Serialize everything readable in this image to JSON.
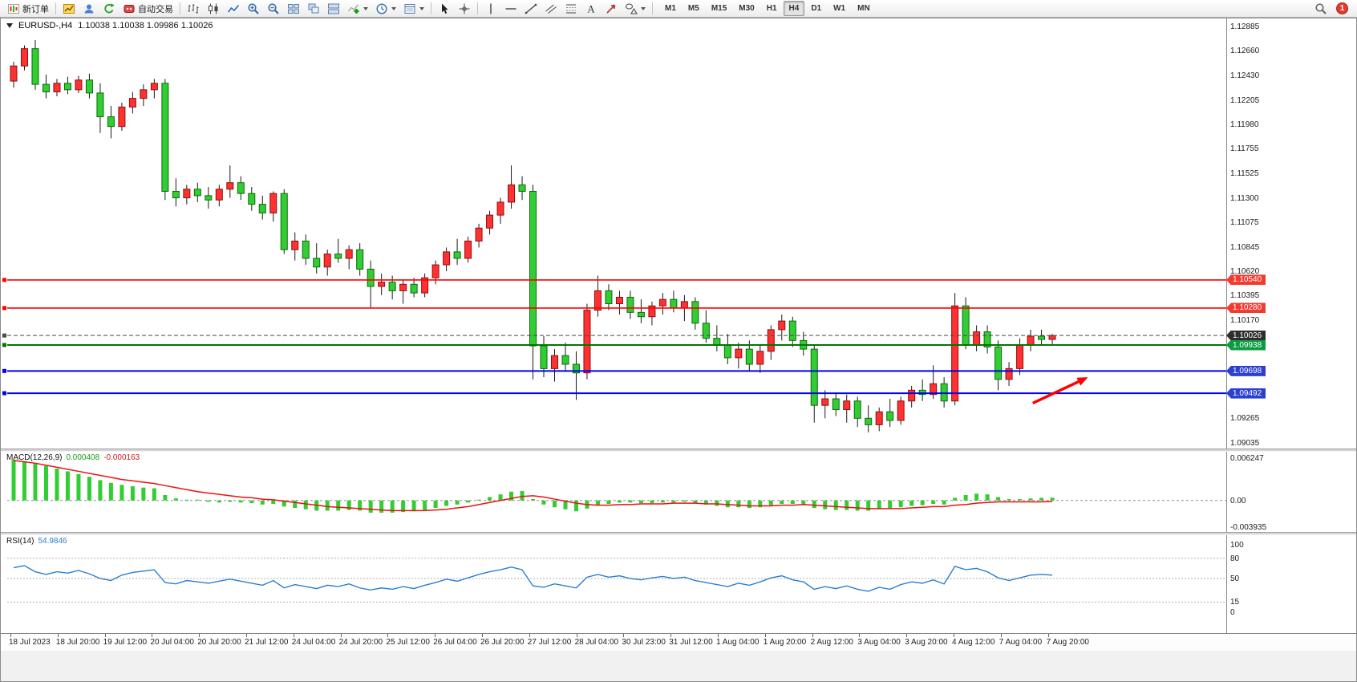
{
  "toolbar": {
    "new_order_label": "新订单",
    "autotrade_label": "自动交易",
    "badge_count": "1",
    "timeframes": [
      {
        "label": "M1",
        "active": false
      },
      {
        "label": "M5",
        "active": false
      },
      {
        "label": "M15",
        "active": false
      },
      {
        "label": "M30",
        "active": false
      },
      {
        "label": "H1",
        "active": false
      },
      {
        "label": "H4",
        "active": true
      },
      {
        "label": "D1",
        "active": false
      },
      {
        "label": "W1",
        "active": false
      },
      {
        "label": "MN",
        "active": false
      }
    ],
    "icons": [
      "new-order",
      "new-chart",
      "profiles",
      "refresh",
      "autotrading",
      "bars-chart-type",
      "candles-chart-type",
      "line-chart-type",
      "zoom-in",
      "zoom-out",
      "tile-windows",
      "cascade-windows",
      "arrange-windows",
      "indicators",
      "periods",
      "templates",
      "cursor",
      "crosshair",
      "vertical-line",
      "horizontal-line",
      "trendline",
      "channel",
      "fibonacci",
      "text",
      "arrow-label",
      "shapes",
      "search",
      "notifications"
    ]
  },
  "chart_title": {
    "symbol": "EURUSD-,H4",
    "ohlc": "1.10038 1.10038 1.09986 1.10026"
  },
  "chart_data": {
    "type": "candlestick",
    "view": {
      "price_top": 1.1293,
      "price_bottom": 1.0901
    },
    "price_axis": {
      "labels": [
        "1.12885",
        "1.12660",
        "1.12430",
        "1.12205",
        "1.11980",
        "1.11755",
        "1.11525",
        "1.11300",
        "1.11075",
        "1.10845",
        "1.10620",
        "1.10395",
        "1.10170",
        "1.09940",
        "1.09715",
        "1.09490",
        "1.09265",
        "1.09035"
      ]
    },
    "time_axis": {
      "labels": [
        "18 Jul 2023",
        "18 Jul 20:00",
        "19 Jul 12:00",
        "20 Jul 04:00",
        "20 Jul 20:00",
        "21 Jul 12:00",
        "24 Jul 04:00",
        "24 Jul 20:00",
        "25 Jul 12:00",
        "26 Jul 04:00",
        "26 Jul 20:00",
        "27 Jul 12:00",
        "28 Jul 04:00",
        "30 Jul 23:00",
        "31 Jul 12:00",
        "1 Aug 04:00",
        "1 Aug 20:00",
        "2 Aug 12:00",
        "3 Aug 04:00",
        "3 Aug 20:00",
        "4 Aug 12:00",
        "7 Aug 04:00",
        "7 Aug 20:00"
      ]
    },
    "levels": [
      {
        "label": "1.10540",
        "price": 1.1054,
        "line_color": "#ff0000",
        "tag_bg": "#f23b2e",
        "style": "solid",
        "width": 1.6
      },
      {
        "label": "1.10280",
        "price": 1.1028,
        "line_color": "#ff0000",
        "tag_bg": "#f23b2e",
        "style": "solid",
        "width": 1.6
      },
      {
        "label": "1.10026",
        "price": 1.10026,
        "line_color": "#4a4a4a",
        "tag_bg": "#2e2e2e",
        "style": "dash",
        "width": 1
      },
      {
        "label": "1.09938",
        "price": 1.09938,
        "line_color": "#007500",
        "tag_bg": "#0a9b40",
        "style": "solid",
        "width": 2
      },
      {
        "label": "1.09698",
        "price": 1.09698,
        "line_color": "#0000ee",
        "tag_bg": "#2b3fd0",
        "style": "solid",
        "width": 2
      },
      {
        "label": "1.09492",
        "price": 1.09492,
        "line_color": "#0000ee",
        "tag_bg": "#2b3fd0",
        "style": "solid",
        "width": 2
      }
    ],
    "arrow_annotation": {
      "color": "#ff0000",
      "from": {
        "index": 94.2,
        "price": 1.094
      },
      "to": {
        "index": 99.3,
        "price": 1.0964
      }
    },
    "candles": {
      "bull_color": "#ff3131",
      "bull_border": "#8e0f0f",
      "bear_color": "#32cd32",
      "bear_border": "#0b6b0b",
      "wick_color": "#1a1a1a",
      "ohlc": [
        [
          1.1238,
          1.1256,
          1.1232,
          1.1252
        ],
        [
          1.1252,
          1.1271,
          1.1248,
          1.1268
        ],
        [
          1.1268,
          1.1276,
          1.123,
          1.1235
        ],
        [
          1.1235,
          1.1244,
          1.1222,
          1.1228
        ],
        [
          1.1228,
          1.124,
          1.1224,
          1.1236
        ],
        [
          1.1236,
          1.1242,
          1.1226,
          1.123
        ],
        [
          1.123,
          1.1243,
          1.1227,
          1.1239
        ],
        [
          1.1239,
          1.1245,
          1.1222,
          1.1227
        ],
        [
          1.1227,
          1.1236,
          1.119,
          1.1205
        ],
        [
          1.1205,
          1.1215,
          1.1185,
          1.1196
        ],
        [
          1.1196,
          1.1218,
          1.1192,
          1.1214
        ],
        [
          1.1214,
          1.1228,
          1.1208,
          1.1222
        ],
        [
          1.1222,
          1.1235,
          1.1215,
          1.123
        ],
        [
          1.123,
          1.124,
          1.1222,
          1.1236
        ],
        [
          1.1236,
          1.124,
          1.1128,
          1.1136
        ],
        [
          1.1136,
          1.1148,
          1.1122,
          1.113
        ],
        [
          1.113,
          1.1142,
          1.1124,
          1.1138
        ],
        [
          1.1138,
          1.1144,
          1.1126,
          1.1132
        ],
        [
          1.1132,
          1.114,
          1.112,
          1.1128
        ],
        [
          1.1128,
          1.1142,
          1.1122,
          1.1138
        ],
        [
          1.1138,
          1.116,
          1.113,
          1.1144
        ],
        [
          1.1144,
          1.115,
          1.1128,
          1.1134
        ],
        [
          1.1134,
          1.114,
          1.1118,
          1.1124
        ],
        [
          1.1124,
          1.1132,
          1.111,
          1.1116
        ],
        [
          1.1116,
          1.1136,
          1.1108,
          1.1134
        ],
        [
          1.1134,
          1.1138,
          1.1078,
          1.1082
        ],
        [
          1.1082,
          1.1098,
          1.1072,
          1.109
        ],
        [
          1.109,
          1.1096,
          1.1068,
          1.1074
        ],
        [
          1.1074,
          1.1088,
          1.106,
          1.1066
        ],
        [
          1.1066,
          1.1082,
          1.1058,
          1.1078
        ],
        [
          1.1078,
          1.1092,
          1.107,
          1.1074
        ],
        [
          1.1074,
          1.1086,
          1.1064,
          1.1082
        ],
        [
          1.1082,
          1.1088,
          1.1058,
          1.1064
        ],
        [
          1.1064,
          1.1072,
          1.1028,
          1.1048
        ],
        [
          1.1048,
          1.106,
          1.104,
          1.1052
        ],
        [
          1.1052,
          1.1058,
          1.1036,
          1.1044
        ],
        [
          1.1044,
          1.1054,
          1.1032,
          1.105
        ],
        [
          1.105,
          1.1056,
          1.1038,
          1.1042
        ],
        [
          1.1042,
          1.106,
          1.1038,
          1.1056
        ],
        [
          1.1056,
          1.1072,
          1.105,
          1.1068
        ],
        [
          1.1068,
          1.1084,
          1.1062,
          1.108
        ],
        [
          1.108,
          1.1092,
          1.1068,
          1.1074
        ],
        [
          1.1074,
          1.1094,
          1.107,
          1.109
        ],
        [
          1.109,
          1.1106,
          1.1084,
          1.1102
        ],
        [
          1.1102,
          1.1118,
          1.1096,
          1.1114
        ],
        [
          1.1114,
          1.113,
          1.1106,
          1.1126
        ],
        [
          1.1126,
          1.116,
          1.112,
          1.1142
        ],
        [
          1.1142,
          1.115,
          1.1128,
          1.1136
        ],
        [
          1.1136,
          1.1142,
          1.0962,
          1.0993
        ],
        [
          1.0993,
          1.1002,
          1.0964,
          1.0972
        ],
        [
          1.0972,
          1.099,
          1.096,
          1.0984
        ],
        [
          1.0984,
          1.0996,
          1.097,
          1.0976
        ],
        [
          1.0976,
          1.0988,
          1.0943,
          1.0968
        ],
        [
          1.0968,
          1.1032,
          1.0962,
          1.1026
        ],
        [
          1.1026,
          1.1058,
          1.102,
          1.1044
        ],
        [
          1.1044,
          1.105,
          1.1026,
          1.1032
        ],
        [
          1.1032,
          1.1044,
          1.1022,
          1.1038
        ],
        [
          1.1038,
          1.1044,
          1.1018,
          1.1024
        ],
        [
          1.1024,
          1.1036,
          1.1014,
          1.102
        ],
        [
          1.102,
          1.1034,
          1.1012,
          1.103
        ],
        [
          1.103,
          1.1042,
          1.1022,
          1.1036
        ],
        [
          1.1036,
          1.1044,
          1.1024,
          1.1028
        ],
        [
          1.1028,
          1.104,
          1.1016,
          1.1034
        ],
        [
          1.1034,
          1.1038,
          1.1008,
          1.1014
        ],
        [
          1.1014,
          1.1026,
          1.0996,
          1.1
        ],
        [
          1.1,
          1.1012,
          1.0988,
          1.0994
        ],
        [
          1.0994,
          1.1004,
          1.0976,
          1.0982
        ],
        [
          1.0982,
          1.0996,
          1.0972,
          1.099
        ],
        [
          1.099,
          1.0998,
          1.097,
          1.0976
        ],
        [
          1.0976,
          1.0994,
          1.0968,
          1.0988
        ],
        [
          1.0988,
          1.1012,
          1.098,
          1.1008
        ],
        [
          1.1008,
          1.1022,
          1.0998,
          1.1016
        ],
        [
          1.1016,
          1.102,
          1.0992,
          1.0998
        ],
        [
          1.0998,
          1.1006,
          1.0984,
          1.099
        ],
        [
          1.099,
          1.0994,
          1.0922,
          1.0938
        ],
        [
          1.0938,
          1.0952,
          1.0926,
          1.0944
        ],
        [
          1.0944,
          1.095,
          1.0928,
          1.0934
        ],
        [
          1.0934,
          1.0948,
          1.0922,
          1.0942
        ],
        [
          1.0942,
          1.0946,
          1.0918,
          1.0926
        ],
        [
          1.0926,
          1.0938,
          1.0913,
          1.092
        ],
        [
          1.092,
          1.0936,
          1.0914,
          1.0932
        ],
        [
          1.0932,
          1.0944,
          1.0918,
          1.0924
        ],
        [
          1.0924,
          1.0946,
          1.092,
          1.0942
        ],
        [
          1.0942,
          1.0956,
          1.0936,
          1.0952
        ],
        [
          1.0952,
          1.0962,
          1.0942,
          1.0948
        ],
        [
          1.0948,
          1.0975,
          1.0944,
          1.0958
        ],
        [
          1.0958,
          1.0964,
          1.0936,
          1.0942
        ],
        [
          1.0942,
          1.1042,
          1.0938,
          1.103
        ],
        [
          1.103,
          1.1038,
          1.099,
          1.0994
        ],
        [
          1.0994,
          1.1012,
          1.0988,
          1.1006
        ],
        [
          1.1006,
          1.1012,
          1.0986,
          1.0992
        ],
        [
          1.0992,
          1.0998,
          1.0952,
          1.0962
        ],
        [
          1.0962,
          1.0978,
          1.0956,
          1.0972
        ],
        [
          1.0972,
          1.1,
          1.0966,
          1.0994
        ],
        [
          1.0994,
          1.1008,
          1.0988,
          1.1002
        ],
        [
          1.1002,
          1.1008,
          1.0994,
          1.0999
        ],
        [
          1.0999,
          1.1004,
          1.0994,
          1.10026
        ]
      ]
    },
    "macd": {
      "label": "MACD(12,26,9)",
      "value_main": "0.000408",
      "value_signal": "-0.000163",
      "scale_labels": [
        "0.006247",
        "0.00",
        "-0.003935"
      ],
      "scale_max": 0.006247,
      "scale_min": -0.003935,
      "histogram_color": "#32cd32",
      "signal_color": "#ee1111",
      "histogram": [
        0.006,
        0.0058,
        0.0055,
        0.0051,
        0.0047,
        0.0043,
        0.0039,
        0.0035,
        0.003,
        0.0026,
        0.0023,
        0.0021,
        0.0019,
        0.0018,
        0.0008,
        0.0003,
        0.0001,
        0.0,
        -0.0002,
        -0.0003,
        -0.0002,
        -0.0003,
        -0.0004,
        -0.0006,
        -0.0005,
        -0.0009,
        -0.0011,
        -0.0013,
        -0.0015,
        -0.0015,
        -0.0015,
        -0.0014,
        -0.0015,
        -0.0018,
        -0.0018,
        -0.0018,
        -0.0017,
        -0.0016,
        -0.0014,
        -0.0011,
        -0.0008,
        -0.0006,
        -0.0003,
        0.0001,
        0.0005,
        0.0009,
        0.0013,
        0.0014,
        0.0002,
        -0.0006,
        -0.001,
        -0.0013,
        -0.0016,
        -0.0012,
        -0.0007,
        -0.0005,
        -0.0003,
        -0.0003,
        -0.0004,
        -0.0004,
        -0.0003,
        -0.0003,
        -0.0002,
        -0.0004,
        -0.0006,
        -0.0008,
        -0.001,
        -0.001,
        -0.0011,
        -0.001,
        -0.0007,
        -0.0005,
        -0.0005,
        -0.0006,
        -0.0011,
        -0.0013,
        -0.0014,
        -0.0014,
        -0.0015,
        -0.0015,
        -0.0013,
        -0.0012,
        -0.001,
        -0.0008,
        -0.0007,
        -0.0005,
        -0.0006,
        0.0004,
        0.0008,
        0.001,
        0.0009,
        0.0005,
        0.0002,
        0.0002,
        0.0003,
        0.0004,
        0.000408
      ],
      "signal": [
        0.0059,
        0.0057,
        0.0055,
        0.0052,
        0.0049,
        0.0046,
        0.0043,
        0.004,
        0.0037,
        0.0034,
        0.0031,
        0.0029,
        0.0027,
        0.0025,
        0.0022,
        0.0019,
        0.0016,
        0.0013,
        0.0011,
        0.0009,
        0.0007,
        0.0005,
        0.0004,
        0.0002,
        0.0001,
        -0.0001,
        -0.0003,
        -0.0005,
        -0.0007,
        -0.0009,
        -0.001,
        -0.0011,
        -0.0012,
        -0.0013,
        -0.0014,
        -0.0015,
        -0.0015,
        -0.0015,
        -0.0015,
        -0.0014,
        -0.0013,
        -0.0011,
        -0.0009,
        -0.0006,
        -0.0003,
        0.0,
        0.0003,
        0.0006,
        0.0007,
        0.0005,
        0.0002,
        -0.0001,
        -0.0004,
        -0.0006,
        -0.0007,
        -0.0007,
        -0.0006,
        -0.0006,
        -0.0005,
        -0.0005,
        -0.0005,
        -0.0004,
        -0.0004,
        -0.0004,
        -0.0005,
        -0.0005,
        -0.0006,
        -0.0007,
        -0.0008,
        -0.0008,
        -0.0008,
        -0.0007,
        -0.0007,
        -0.0006,
        -0.0007,
        -0.0008,
        -0.0009,
        -0.001,
        -0.0011,
        -0.0012,
        -0.0012,
        -0.0012,
        -0.0012,
        -0.0011,
        -0.001,
        -0.0009,
        -0.0009,
        -0.0007,
        -0.0006,
        -0.0004,
        -0.0003,
        -0.0002,
        -0.0002,
        -0.0002,
        -0.0002,
        -0.0002,
        -0.000163
      ]
    },
    "rsi": {
      "label": "RSI(14)",
      "value": "54.9846",
      "line_color": "#2e7fd0",
      "levels": [
        "100",
        "80",
        "50",
        "15",
        "0"
      ],
      "dashed_levels": [
        80,
        50,
        15
      ],
      "values": [
        66,
        69,
        60,
        56,
        60,
        58,
        62,
        57,
        50,
        47,
        55,
        59,
        61,
        63,
        44,
        42,
        47,
        45,
        43,
        46,
        49,
        46,
        43,
        40,
        47,
        36,
        41,
        38,
        35,
        40,
        38,
        42,
        36,
        33,
        36,
        34,
        38,
        35,
        40,
        44,
        49,
        46,
        51,
        56,
        60,
        63,
        67,
        63,
        39,
        37,
        42,
        39,
        36,
        52,
        56,
        52,
        54,
        50,
        48,
        51,
        53,
        50,
        52,
        47,
        44,
        41,
        38,
        43,
        40,
        45,
        51,
        54,
        48,
        45,
        34,
        38,
        35,
        39,
        34,
        31,
        37,
        34,
        41,
        45,
        43,
        48,
        42,
        68,
        63,
        65,
        60,
        51,
        47,
        51,
        55,
        56,
        54.98
      ]
    }
  }
}
